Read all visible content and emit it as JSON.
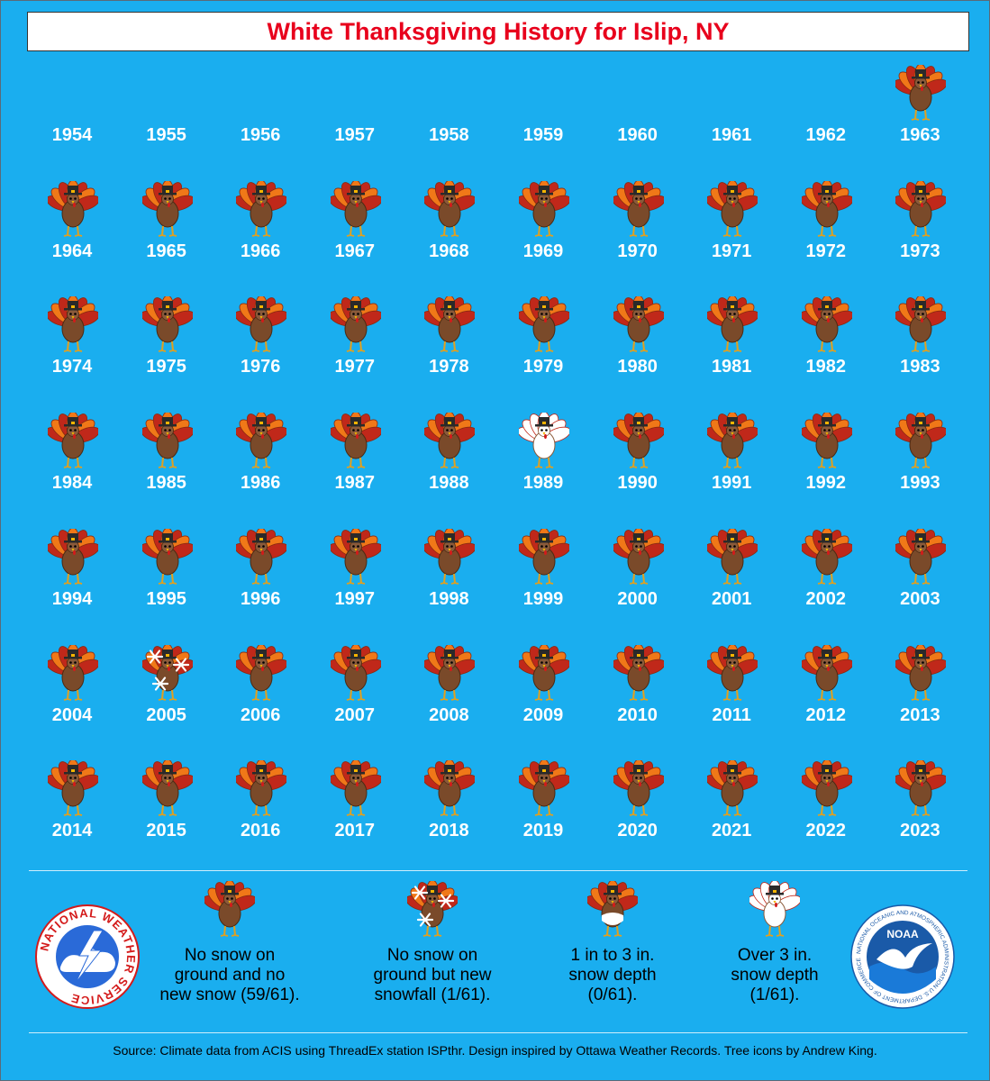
{
  "title": "White Thanksgiving History for Islip, NY",
  "chart_data": {
    "type": "table",
    "title": "White Thanksgiving History for Islip, NY",
    "years": [
      1954,
      1955,
      1956,
      1957,
      1958,
      1959,
      1960,
      1961,
      1962,
      1963,
      1964,
      1965,
      1966,
      1967,
      1968,
      1969,
      1970,
      1971,
      1972,
      1973,
      1974,
      1975,
      1976,
      1977,
      1978,
      1979,
      1980,
      1981,
      1982,
      1983,
      1984,
      1985,
      1986,
      1987,
      1988,
      1989,
      1990,
      1991,
      1992,
      1993,
      1994,
      1995,
      1996,
      1997,
      1998,
      1999,
      2000,
      2001,
      2002,
      2003,
      2004,
      2005,
      2006,
      2007,
      2008,
      2009,
      2010,
      2011,
      2012,
      2013,
      2014,
      2015,
      2016,
      2017,
      2018,
      2019,
      2020,
      2021,
      2022,
      2023
    ],
    "categories": [
      "missing",
      "missing",
      "missing",
      "missing",
      "missing",
      "missing",
      "missing",
      "missing",
      "missing",
      "none",
      "none",
      "none",
      "none",
      "none",
      "none",
      "none",
      "none",
      "none",
      "none",
      "none",
      "none",
      "none",
      "none",
      "none",
      "none",
      "none",
      "none",
      "none",
      "none",
      "none",
      "none",
      "none",
      "none",
      "none",
      "none",
      "over3",
      "none",
      "none",
      "none",
      "none",
      "none",
      "none",
      "none",
      "none",
      "none",
      "none",
      "none",
      "none",
      "none",
      "none",
      "none",
      "newsnow",
      "none",
      "none",
      "none",
      "none",
      "none",
      "none",
      "none",
      "none",
      "none",
      "none",
      "none",
      "none",
      "none",
      "none",
      "none",
      "none",
      "none",
      "none"
    ],
    "columns": 10
  },
  "legend": [
    {
      "key": "none",
      "label": "No snow on ground and no new snow (59/61)."
    },
    {
      "key": "newsnow",
      "label": "No snow on ground but new snowfall (1/61)."
    },
    {
      "key": "1to3",
      "label": "1 in to 3 in. snow depth (0/61)."
    },
    {
      "key": "over3",
      "label": "Over 3 in. snow depth (1/61)."
    }
  ],
  "logos": {
    "nws": "NATIONAL WEATHER SERVICE",
    "noaa": "NOAA",
    "noaa_ring": "NATIONAL OCEANIC AND ATMOSPHERIC ADMINISTRATION U.S. DEPARTMENT OF COMMERCE"
  },
  "source": "Source: Climate data from ACIS using ThreadEx station ISPthr. Design inspired by Ottawa Weather Records. Tree icons by Andrew King.",
  "colors": {
    "background": "#1aaeef",
    "title_text": "#e8001c",
    "turkey_body": "#7a4a2a",
    "turkey_feather_red": "#c0281a",
    "turkey_feather_orange": "#f07818",
    "turkey_hat": "#2a2a2a",
    "snow": "#ffffff"
  },
  "icons": {
    "turkey": "turkey-icon",
    "snowflake": "snowflake-icon"
  }
}
